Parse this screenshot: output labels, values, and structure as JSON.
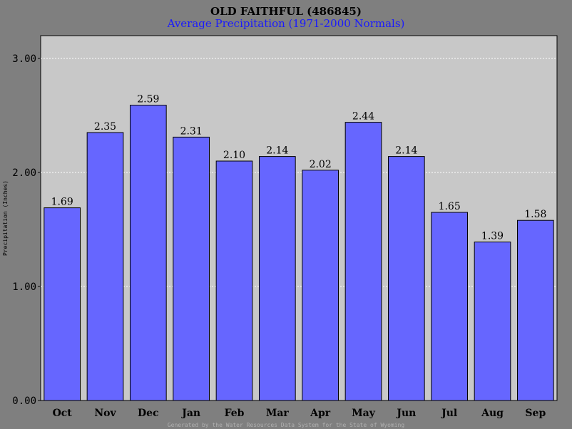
{
  "chart_data": {
    "type": "bar",
    "title": "OLD FAITHFUL (486845)",
    "subtitle": "Average Precipitation (1971-2000 Normals)",
    "ylabel": "Precipitation (Inches)",
    "xlabel": "",
    "categories": [
      "Oct",
      "Nov",
      "Dec",
      "Jan",
      "Feb",
      "Mar",
      "Apr",
      "May",
      "Jun",
      "Jul",
      "Aug",
      "Sep"
    ],
    "values": [
      1.69,
      2.35,
      2.59,
      2.31,
      2.1,
      2.14,
      2.02,
      2.44,
      2.14,
      1.65,
      1.39,
      1.58
    ],
    "data_labels": [
      "1.69",
      "2.35",
      "2.59",
      "2.31",
      "2.10",
      "2.14",
      "2.02",
      "2.44",
      "2.14",
      "1.65",
      "1.39",
      "1.58"
    ],
    "ylim": [
      0,
      3.2
    ],
    "yticks": [
      0,
      1,
      2,
      3
    ],
    "ytick_labels": [
      "0.00",
      "1.00",
      "2.00",
      "3.00"
    ],
    "grid": true,
    "legend": "none",
    "footer": "Generated by the Water Resources Data System for the State of Wyoming",
    "colors": {
      "background": "#7f7f7f",
      "plot_area": "#c8c8c8",
      "bar_fill": "#6666ff",
      "gridline": "#ffffff",
      "subtitle": "#1a1aff",
      "footer": "#b0b0b0"
    }
  }
}
